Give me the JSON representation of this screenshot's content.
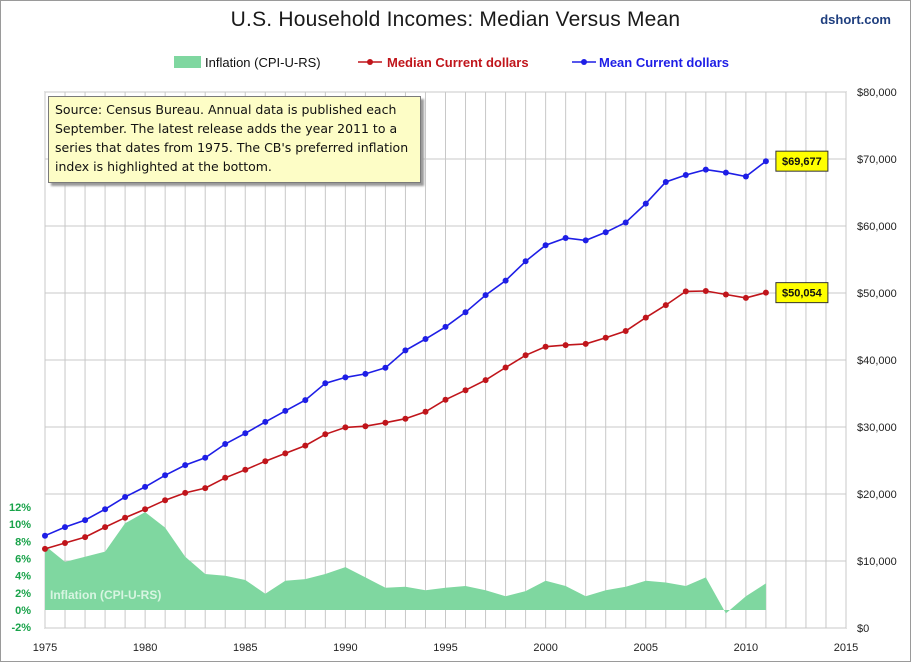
{
  "header": {
    "title": "U.S. Household Incomes: Median Versus Mean",
    "brand": "dshort.com"
  },
  "note": "Source: Census Bureau. Annual data is published each September.  The latest release adds the year 2011 to a series that dates from  1975. The CB's preferred inflation index is highlighted at the bottom.",
  "colors": {
    "median": "#c0151b",
    "mean": "#1e1ee6",
    "inflation": "#7fd7a0",
    "inflation_label": "#d8f5e2",
    "callout": "#ffff00",
    "grid": "#c8c8c8"
  },
  "chart_data": {
    "type": "line",
    "title": "U.S. Household Incomes: Median Versus Mean",
    "x": [
      1975,
      1976,
      1977,
      1978,
      1979,
      1980,
      1981,
      1982,
      1983,
      1984,
      1985,
      1986,
      1987,
      1988,
      1989,
      1990,
      1991,
      1992,
      1993,
      1994,
      1995,
      1996,
      1997,
      1998,
      1999,
      2000,
      2001,
      2002,
      2003,
      2004,
      2005,
      2006,
      2007,
      2008,
      2009,
      2010,
      2011
    ],
    "xlim": [
      1975,
      2015
    ],
    "x_ticks": [
      1975,
      1980,
      1985,
      1990,
      1995,
      2000,
      2005,
      2010,
      2015
    ],
    "y_right": {
      "lim": [
        0,
        80000
      ],
      "ticks": [
        0,
        10000,
        20000,
        30000,
        40000,
        50000,
        60000,
        70000,
        80000
      ],
      "tick_labels": [
        "$0",
        "$10,000",
        "$20,000",
        "$30,000",
        "$40,000",
        "$50,000",
        "$60,000",
        "$70,000",
        "$80,000"
      ]
    },
    "y_left": {
      "lim": [
        -2,
        12
      ],
      "ticks": [
        -2,
        0,
        2,
        4,
        6,
        8,
        10,
        12
      ],
      "tick_labels": [
        "-2%",
        "0%",
        "2%",
        "4%",
        "6%",
        "8%",
        "10%",
        "12%"
      ]
    },
    "grid": true,
    "legend": {
      "position": "top-center",
      "entries": [
        "Inflation (CPI-U-RS)",
        "Median Current dollars",
        "Mean Current dollars"
      ]
    },
    "series": [
      {
        "name": "Inflation (CPI-U-RS)",
        "type": "area",
        "axis": "left",
        "values": [
          7.5,
          5.6,
          6.2,
          6.8,
          10.1,
          11.4,
          9.6,
          6.2,
          4.2,
          4.0,
          3.5,
          1.9,
          3.4,
          3.6,
          4.2,
          5.0,
          3.8,
          2.6,
          2.7,
          2.3,
          2.6,
          2.8,
          2.3,
          1.6,
          2.2,
          3.4,
          2.8,
          1.6,
          2.3,
          2.7,
          3.4,
          3.2,
          2.8,
          3.8,
          -0.4,
          1.6,
          3.1
        ],
        "label": "Inflation (CPI-U-RS)"
      },
      {
        "name": "Median Current dollars",
        "type": "line",
        "axis": "right",
        "values": [
          11800,
          12686,
          13572,
          15064,
          16461,
          17710,
          19074,
          20171,
          20885,
          22415,
          23618,
          24897,
          26061,
          27225,
          28906,
          29943,
          30126,
          30636,
          31241,
          32264,
          34076,
          35492,
          37005,
          38885,
          40696,
          41990,
          42228,
          42409,
          43318,
          44334,
          46326,
          48201,
          50233,
          50303,
          49777,
          49276,
          50054
        ],
        "end_label": "$50,054"
      },
      {
        "name": "Mean Current dollars",
        "type": "line",
        "axis": "right",
        "values": [
          13779,
          15064,
          16100,
          17730,
          19554,
          21063,
          22787,
          24309,
          25401,
          27464,
          29066,
          30759,
          32410,
          34017,
          36520,
          37403,
          37922,
          38840,
          41428,
          43133,
          44938,
          47123,
          49692,
          51855,
          54737,
          57135,
          58208,
          57852,
          59067,
          60528,
          63344,
          66570,
          67609,
          68424,
          67976,
          67392,
          69677
        ],
        "end_label": "$69,677"
      }
    ]
  }
}
